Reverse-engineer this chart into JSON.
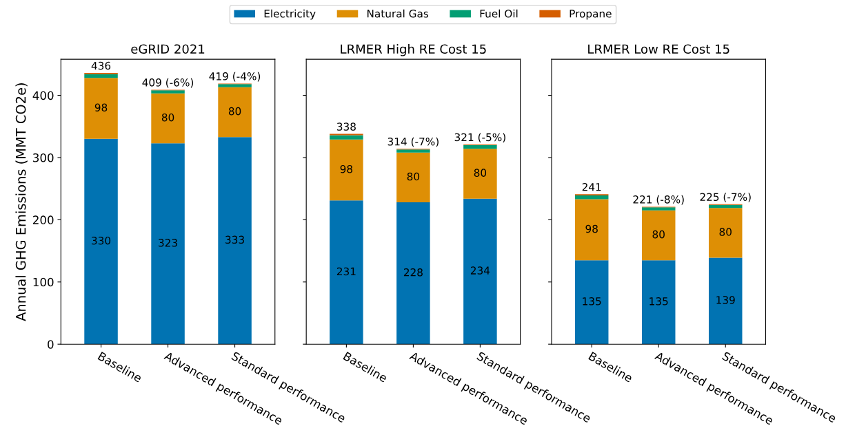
{
  "chart_data": [
    {
      "type": "bar",
      "stacked": true,
      "title": "eGRID 2021",
      "ylabel": "Annual GHG Emissions (MMT CO2e)",
      "categories": [
        "Baseline",
        "Advanced performance",
        "Standard performance"
      ],
      "ylim": [
        0,
        458
      ],
      "yticks": [
        0,
        100,
        200,
        300,
        400
      ],
      "legend": "top",
      "grid": false,
      "series": [
        {
          "name": "Electricity",
          "color": "#0173b2",
          "values": [
            330,
            323,
            333
          ],
          "value_labels": [
            "330",
            "323",
            "333"
          ]
        },
        {
          "name": "Natural Gas",
          "color": "#de8f05",
          "values": [
            98,
            80,
            80
          ],
          "value_labels": [
            "98",
            "80",
            "80"
          ]
        },
        {
          "name": "Fuel Oil",
          "color": "#029e73",
          "values": [
            6,
            5,
            5
          ]
        },
        {
          "name": "Propane",
          "color": "#d55e00",
          "values": [
            2,
            1,
            1
          ]
        }
      ],
      "totals": [
        "436",
        "409 (-6%)",
        "419 (-4%)"
      ]
    },
    {
      "type": "bar",
      "stacked": true,
      "title": "LRMER High RE Cost 15",
      "categories": [
        "Baseline",
        "Advanced performance",
        "Standard performance"
      ],
      "ylim": [
        0,
        458
      ],
      "yticks": [
        0,
        100,
        200,
        300,
        400
      ],
      "tick_labels": "x",
      "grid": false,
      "series": [
        {
          "color": "#0173b2",
          "values": [
            231,
            228,
            234
          ],
          "value_labels": [
            "231",
            "228",
            "234"
          ]
        },
        {
          "color": "#de8f05",
          "values": [
            98,
            80,
            80
          ],
          "value_labels": [
            "98",
            "80",
            "80"
          ]
        },
        {
          "color": "#029e73",
          "values": [
            7,
            5,
            6
          ]
        },
        {
          "color": "#d55e00",
          "values": [
            2,
            1,
            1
          ]
        }
      ],
      "totals": [
        "338",
        "314 (-7%)",
        "321 (-5%)"
      ]
    },
    {
      "type": "bar",
      "stacked": true,
      "title": "LRMER Low RE Cost 15",
      "categories": [
        "Baseline",
        "Advanced performance",
        "Standard performance"
      ],
      "ylim": [
        0,
        458
      ],
      "yticks": [
        0,
        100,
        200,
        300,
        400
      ],
      "tick_labels": "x",
      "grid": false,
      "series": [
        {
          "color": "#0173b2",
          "values": [
            135,
            135,
            139
          ],
          "value_labels": [
            "135",
            "135",
            "139"
          ]
        },
        {
          "color": "#de8f05",
          "values": [
            98,
            80,
            80
          ],
          "value_labels": [
            "98",
            "80",
            "80"
          ]
        },
        {
          "color": "#029e73",
          "values": [
            6,
            5,
            5
          ]
        },
        {
          "color": "#d55e00",
          "values": [
            2,
            1,
            1
          ]
        }
      ],
      "totals": [
        "241",
        "221 (-8%)",
        "225 (-7%)"
      ]
    }
  ]
}
